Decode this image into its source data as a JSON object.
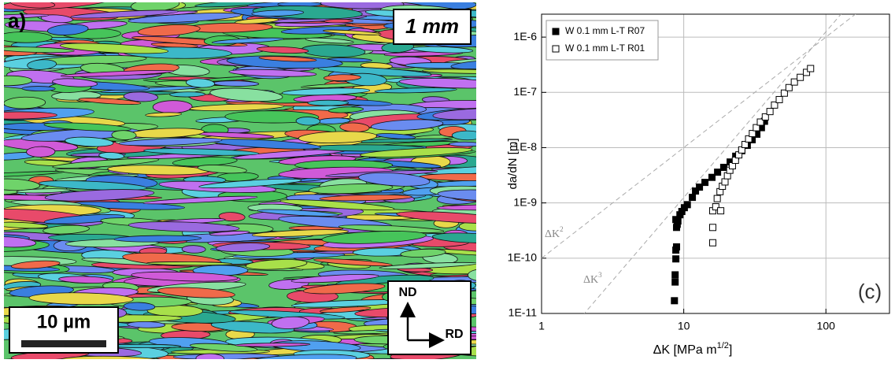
{
  "panel_a": {
    "label": "a)",
    "tag": "1 mm",
    "scale_bar": "10 µm",
    "axes": [
      "ND",
      "RD"
    ]
  },
  "chart_data": {
    "type": "scatter",
    "panel_label": "(c)",
    "y_label": "da/dN [m]",
    "x_label": {
      "text": "ΔK  [MPa m",
      "sup": "1/2",
      "end": "]"
    },
    "xscale": "log",
    "yscale": "log",
    "grid": true,
    "xlim": [
      1,
      280
    ],
    "ylim": [
      1e-11,
      2.6e-06
    ],
    "xticks": [
      1,
      10,
      100
    ],
    "yticks": [
      {
        "value": 1e-11,
        "label": "1E-11"
      },
      {
        "value": 1e-10,
        "label": "1E-10"
      },
      {
        "value": 1e-09,
        "label": "1E-9"
      },
      {
        "value": 1e-08,
        "label": "1E-8"
      },
      {
        "value": 1e-07,
        "label": "1E-7"
      },
      {
        "value": 1e-06,
        "label": "1E-6"
      }
    ],
    "legend": "top-left",
    "reference_lines": [
      {
        "label": "ΔK",
        "exponent": 2,
        "coefficient": 1e-10
      },
      {
        "label": "ΔK",
        "exponent": 3,
        "coefficient": 1.25e-12
      }
    ],
    "series": [
      {
        "name": "W 0.1 mm L-T R07",
        "color": "#000000",
        "marker": "filled",
        "x": [
          8.6,
          8.7,
          8.7,
          8.8,
          8.8,
          8.9,
          8.9,
          9.0,
          8.8,
          9.1,
          9.4,
          9.7,
          10.1,
          10.6,
          11.5,
          12.1,
          12.9,
          14.1,
          15.8,
          17.3,
          19.1,
          21.2,
          23.2,
          25.6,
          28.0,
          30.3,
          32.7,
          35.2,
          37.0
        ],
        "values": [
          1.7e-11,
          3.7e-11,
          5e-11,
          9.7e-11,
          1.4e-10,
          1.6e-10,
          3.6e-10,
          4.1e-10,
          5e-10,
          4.7e-10,
          6.1e-10,
          7e-10,
          8.2e-10,
          9.3e-10,
          1.26e-09,
          1.64e-09,
          1.93e-09,
          2.35e-09,
          2.9e-09,
          3.6e-09,
          4.4e-09,
          5.5e-09,
          7e-09,
          8.8e-09,
          1.1e-08,
          1.39e-08,
          1.75e-08,
          2.3e-08,
          3e-08
        ]
      },
      {
        "name": "W 0.1 mm L-T R01",
        "color": "#000000",
        "marker": "open",
        "x": [
          16.0,
          16.0,
          16.0,
          16.8,
          18.2,
          17.2,
          18.0,
          18.7,
          19.5,
          20.3,
          21.1,
          22.0,
          23.1,
          24.4,
          25.6,
          27.0,
          28.6,
          30.4,
          32.4,
          34.6,
          37.5,
          40.4,
          43.5,
          47.0,
          51.0,
          55.0,
          60.0,
          66.0,
          73.0,
          78.0
        ],
        "values": [
          1.9e-10,
          3.6e-10,
          7.2e-10,
          8.5e-10,
          7.2e-10,
          1.2e-09,
          1.6e-09,
          2e-09,
          2.4e-09,
          3.1e-09,
          3.9e-09,
          4.7e-09,
          5.9e-09,
          7.4e-09,
          9.1e-09,
          1.14e-08,
          1.44e-08,
          1.8e-08,
          2.3e-08,
          2.9e-08,
          3.6e-08,
          4.5e-08,
          5.9e-08,
          7.4e-08,
          9.7e-08,
          1.22e-07,
          1.54e-07,
          1.87e-07,
          2.3e-07,
          2.7e-07
        ]
      }
    ]
  }
}
